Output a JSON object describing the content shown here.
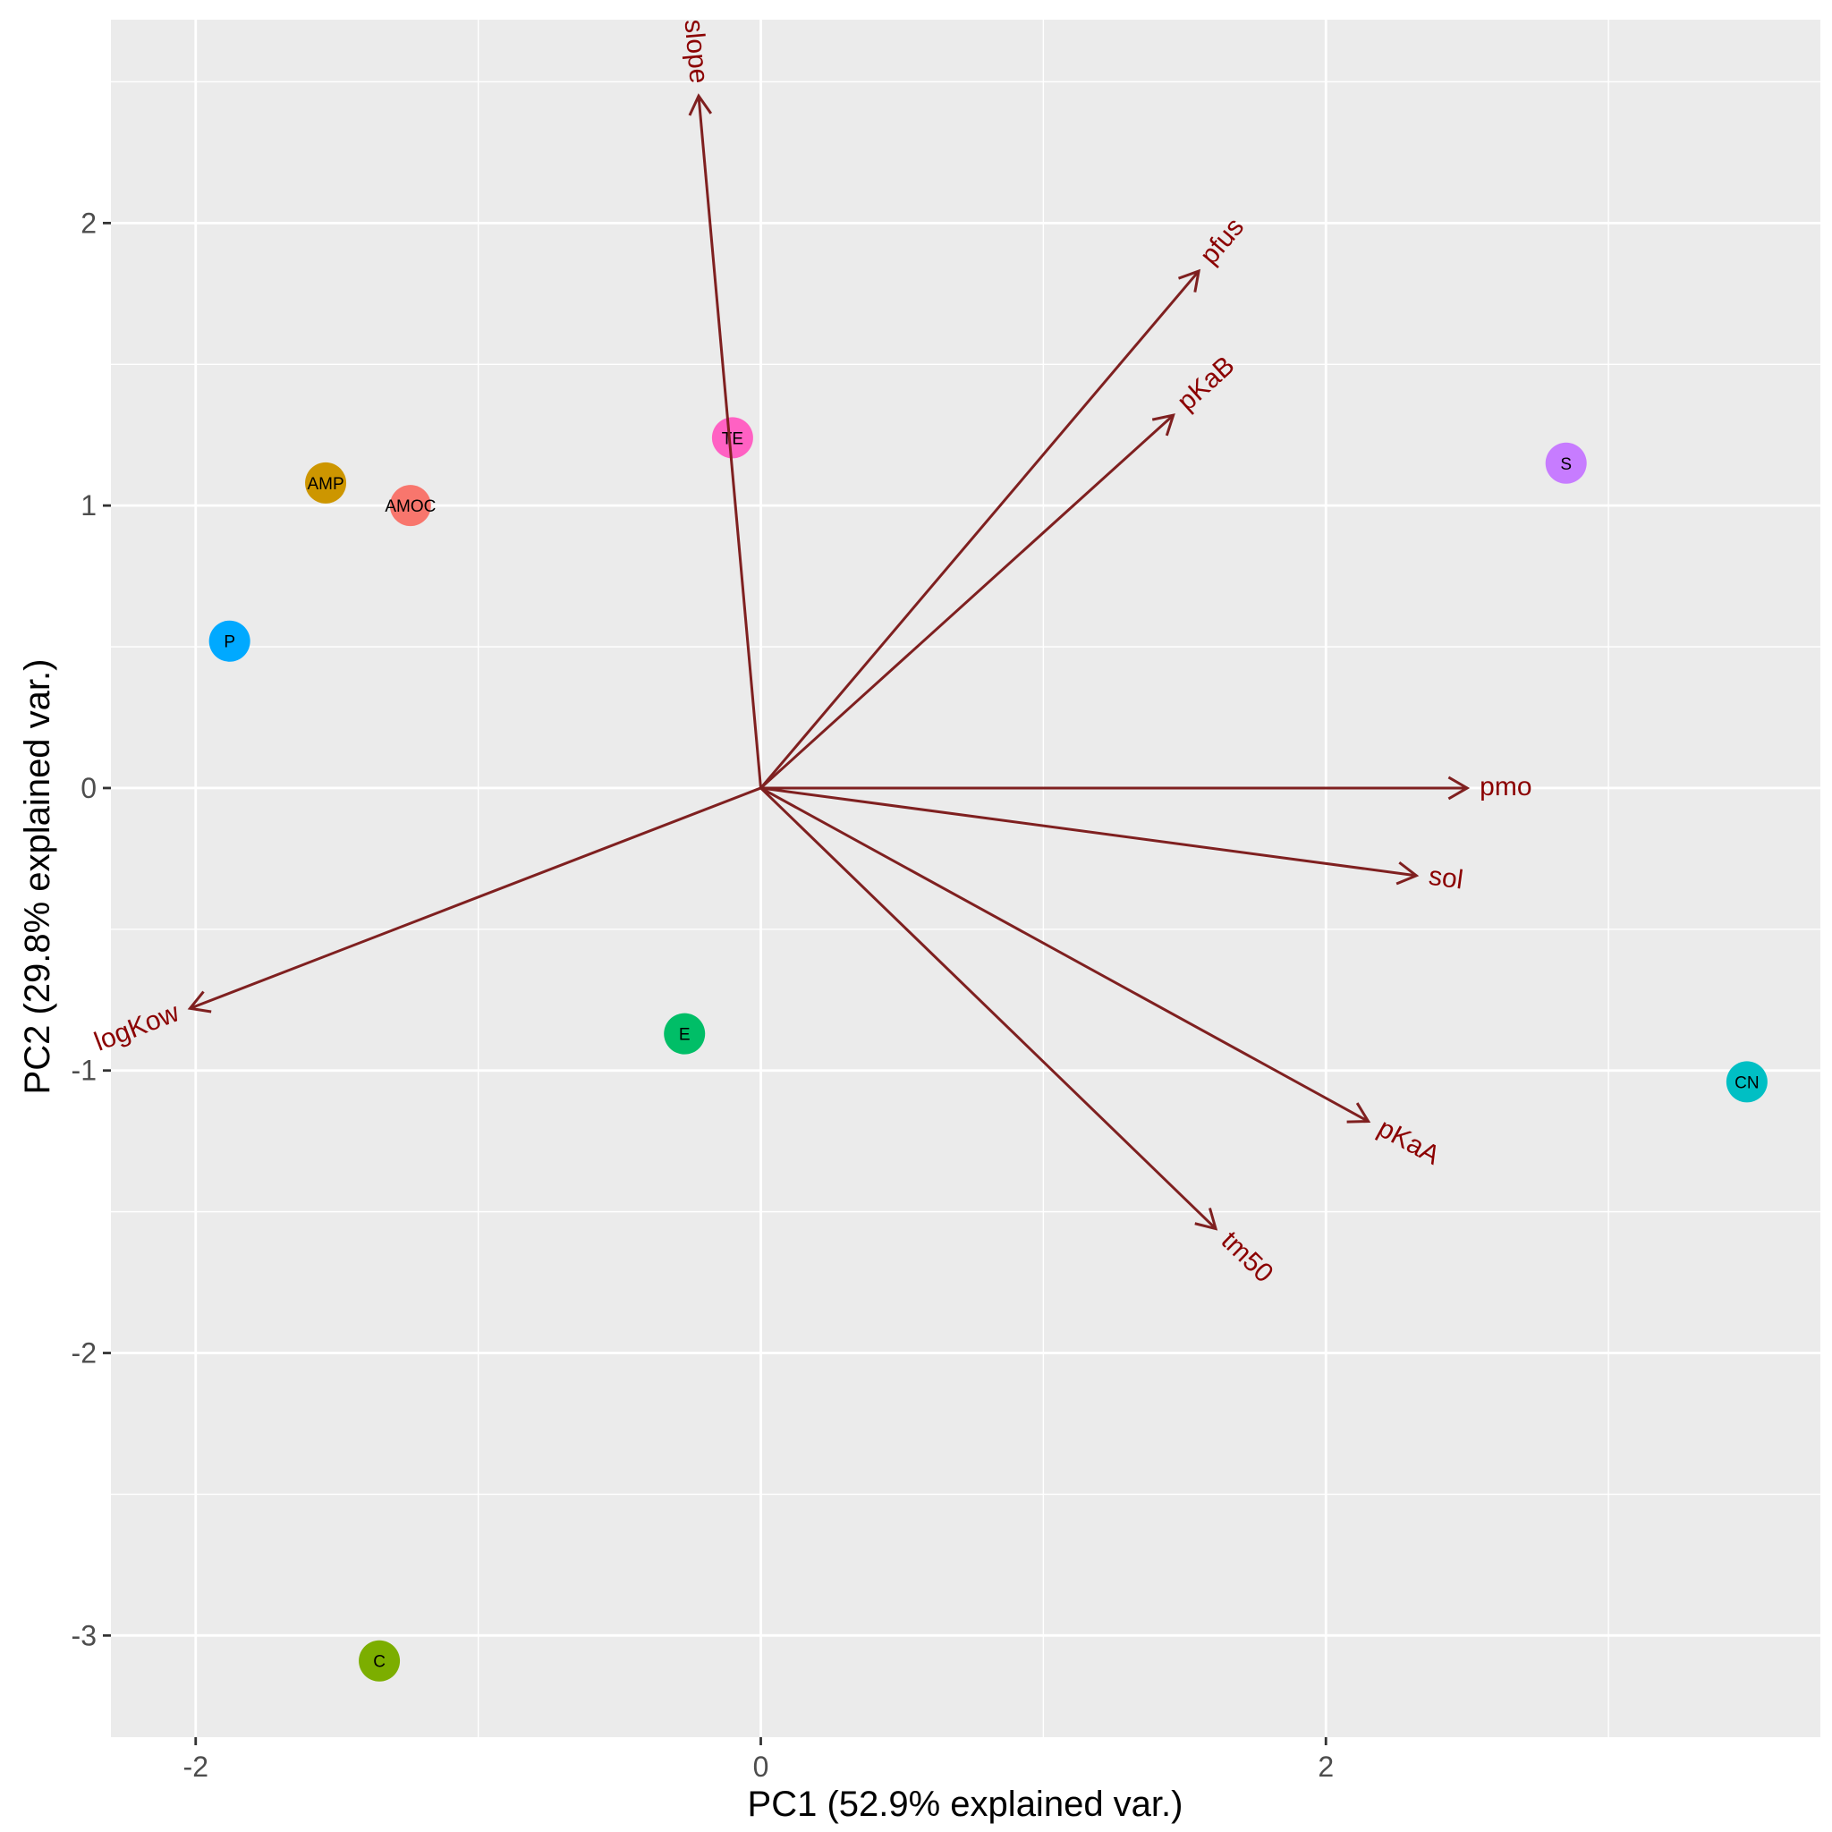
{
  "chart_data": {
    "type": "scatter",
    "subtype": "pca-biplot",
    "xlabel": "PC1 (52.9% explained var.)",
    "ylabel": "PC2 (29.8% explained var.)",
    "xlim": [
      -2.3,
      3.75
    ],
    "ylim": [
      -3.36,
      2.72
    ],
    "x_ticks": [
      -2,
      0,
      2
    ],
    "y_ticks": [
      -3,
      -2,
      -1,
      0,
      1,
      2
    ],
    "x_tick_labels": [
      "-2",
      "0",
      "2"
    ],
    "y_tick_labels": [
      "-3",
      "-2",
      "-1",
      "0",
      "1",
      "2"
    ],
    "grid": true,
    "points": [
      {
        "label": "TE",
        "x": -0.1,
        "y": 1.24,
        "color": "#FF61C3"
      },
      {
        "label": "AMP",
        "x": -1.54,
        "y": 1.08,
        "color": "#CD9600"
      },
      {
        "label": "AMOC",
        "x": -1.24,
        "y": 1.0,
        "color": "#F8766D"
      },
      {
        "label": "P",
        "x": -1.88,
        "y": 0.52,
        "color": "#00A9FF"
      },
      {
        "label": "S",
        "x": 2.85,
        "y": 1.15,
        "color": "#C77CFF"
      },
      {
        "label": "E",
        "x": -0.27,
        "y": -0.87,
        "color": "#00BE67"
      },
      {
        "label": "CN",
        "x": 3.49,
        "y": -1.04,
        "color": "#00BFC4"
      },
      {
        "label": "C",
        "x": -1.35,
        "y": -3.09,
        "color": "#7CAE00"
      }
    ],
    "vectors": [
      {
        "label": "slope",
        "x": -0.22,
        "y": 2.45
      },
      {
        "label": "pfus",
        "x": 1.55,
        "y": 1.83
      },
      {
        "label": "pKaB",
        "x": 1.46,
        "y": 1.32
      },
      {
        "label": "pmo",
        "x": 2.5,
        "y": 0.0
      },
      {
        "label": "sol",
        "x": 2.32,
        "y": -0.31
      },
      {
        "label": "pKaA",
        "x": 2.15,
        "y": -1.18
      },
      {
        "label": "tm50",
        "x": 1.61,
        "y": -1.56
      },
      {
        "label": "logKow",
        "x": -2.02,
        "y": -0.78
      }
    ],
    "vector_color": "#7F2020",
    "vector_label_color": "#8B0000",
    "panel_color": "#EBEBEB",
    "grid_color": "#FFFFFF"
  }
}
